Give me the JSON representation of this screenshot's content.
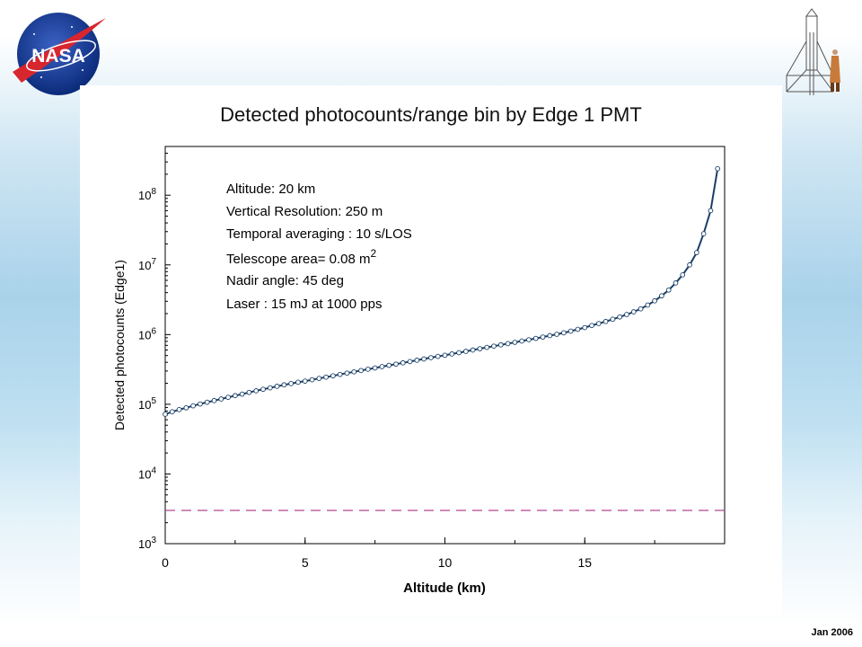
{
  "footer": {
    "date": "Jan 2006"
  },
  "logos": {
    "left": "NASA",
    "right_icon": "rocket-and-person-icon"
  },
  "chart_data": {
    "type": "scatter",
    "title": "Detected photocounts/range bin by Edge 1 PMT",
    "xlabel": "Altitude (km)",
    "ylabel": "Detected photocounts (Edge1)",
    "xlim": [
      0,
      20
    ],
    "ylim": [
      1000,
      500000000
    ],
    "yscale": "log",
    "xticks": [
      0,
      5,
      10,
      15
    ],
    "yticks": [
      {
        "value": 1000,
        "base": "10",
        "exp": "3"
      },
      {
        "value": 10000,
        "base": "10",
        "exp": "4"
      },
      {
        "value": 100000,
        "base": "10",
        "exp": "5"
      },
      {
        "value": 1000000,
        "base": "10",
        "exp": "6"
      },
      {
        "value": 10000000,
        "base": "10",
        "exp": "7"
      },
      {
        "value": 100000000,
        "base": "10",
        "exp": "8"
      }
    ],
    "grid": false,
    "annotations": [
      {
        "text": "Altitude: 20 km"
      },
      {
        "text": "Vertical Resolution: 250 m"
      },
      {
        "text": "Temporal averaging : 10 s/LOS"
      },
      {
        "text": "Telescope area= 0.08 m",
        "sup": "2"
      },
      {
        "text": "Nadir angle:  45 deg"
      },
      {
        "text": "Laser : 15 mJ at 1000 pps"
      }
    ],
    "series": [
      {
        "kind": "line-with-markers",
        "color": "#1a3f66",
        "x": [
          0,
          0.25,
          0.5,
          0.75,
          1,
          1.25,
          1.5,
          1.75,
          2,
          2.25,
          2.5,
          2.75,
          3,
          3.25,
          3.5,
          3.75,
          4,
          4.25,
          4.5,
          4.75,
          5,
          5.25,
          5.5,
          5.75,
          6,
          6.25,
          6.5,
          6.75,
          7,
          7.25,
          7.5,
          7.75,
          8,
          8.25,
          8.5,
          8.75,
          9,
          9.25,
          9.5,
          9.75,
          10,
          10.25,
          10.5,
          10.75,
          11,
          11.25,
          11.5,
          11.75,
          12,
          12.25,
          12.5,
          12.75,
          13,
          13.25,
          13.5,
          13.75,
          14,
          14.25,
          14.5,
          14.75,
          15,
          15.25,
          15.5,
          15.75,
          16,
          16.25,
          16.5,
          16.75,
          17,
          17.25,
          17.5,
          17.75,
          18,
          18.25,
          18.5,
          18.75,
          19,
          19.25,
          19.5,
          19.75
        ],
        "y": [
          72000,
          78000,
          84000,
          89000,
          95000,
          101000,
          107000,
          113000,
          119000,
          126000,
          133000,
          140000,
          148000,
          156000,
          164000,
          172000,
          181000,
          190000,
          198000,
          207000,
          215000,
          225000,
          235000,
          245000,
          256000,
          268000,
          280000,
          292000,
          305000,
          318000,
          332000,
          347000,
          362000,
          377000,
          393000,
          410000,
          428000,
          447000,
          466000,
          486000,
          505000,
          527000,
          550000,
          574000,
          600000,
          627000,
          655000,
          683000,
          712000,
          742000,
          774000,
          808000,
          844000,
          882000,
          922000,
          965000,
          1010000,
          1060000,
          1120000,
          1190000,
          1260000,
          1350000,
          1440000,
          1540000,
          1660000,
          1790000,
          1940000,
          2120000,
          2340000,
          2650000,
          3050000,
          3600000,
          4350000,
          5500000,
          7200000,
          10000000,
          15000000,
          28000000,
          60000000,
          240000000
        ]
      },
      {
        "kind": "dashed-line",
        "color": "#b0488c",
        "x": [
          0,
          20
        ],
        "y": [
          3000,
          3000
        ]
      }
    ]
  }
}
